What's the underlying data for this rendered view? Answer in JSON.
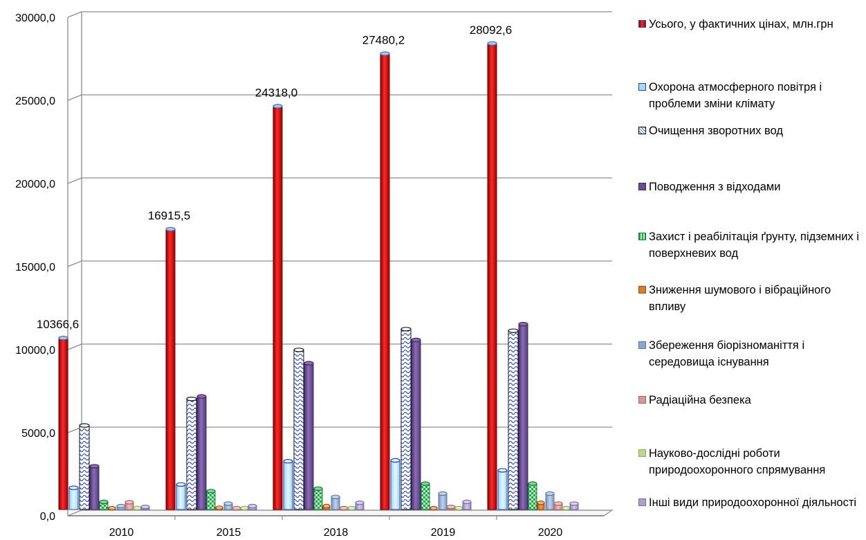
{
  "chart_data": {
    "type": "bar",
    "categories": [
      "2010",
      "2015",
      "2018",
      "2019",
      "2020"
    ],
    "ylim": [
      0,
      30000
    ],
    "yticks": [
      "0,0",
      "5000,0",
      "10000,0",
      "15000,0",
      "20000,0",
      "25000,0",
      "30000,0"
    ],
    "grid": true,
    "legend_position": "right",
    "series": [
      {
        "name": "Усього, у фактичних цінах, млн.грн",
        "color": "#c00000",
        "values": [
          10366.6,
          16915.5,
          24318.0,
          27480.2,
          28092.6
        ],
        "data_labels": [
          "10366,6",
          "16915,5",
          "24318,0",
          "27480,2",
          "28092,6"
        ]
      },
      {
        "name": "Охорона атмосферного  повітря і проблеми зміни клімату",
        "color": "#a6dcf0",
        "values": [
          1350,
          1550,
          2950,
          3000,
          2400
        ]
      },
      {
        "name": "Очищення зворотних вод",
        "color": "#ffffff",
        "values": [
          5100,
          6700,
          9650,
          10900,
          10800
        ]
      },
      {
        "name": "Поводження з відходами",
        "color": "#6a4c93",
        "values": [
          2650,
          6850,
          8850,
          10250,
          11200
        ]
      },
      {
        "name": "Захист і реабілітація ґрунту, підземних і поверхневих вод",
        "color": "#1ea84a",
        "values": [
          500,
          1150,
          1300,
          1600,
          1600
        ]
      },
      {
        "name": "Зниження шумового і вібраційного впливу",
        "color": "#e07a2a",
        "values": [
          60,
          150,
          250,
          100,
          450
        ]
      },
      {
        "name": "Збереження біорізноманіття і середовища існування",
        "color": "#8aa7d0",
        "values": [
          250,
          400,
          800,
          1000,
          1000
        ]
      },
      {
        "name": "Радіаційна безпека",
        "color": "#d99594",
        "values": [
          480,
          120,
          100,
          200,
          400
        ]
      },
      {
        "name": "Науково-дослідні роботи природоохоронного спрямування",
        "color": "#b8d88e",
        "values": [
          120,
          120,
          100,
          120,
          100
        ]
      },
      {
        "name": "Інші види природоохоронної діяльності",
        "color": "#ad9dcc",
        "values": [
          200,
          250,
          450,
          500,
          400
        ]
      }
    ]
  }
}
